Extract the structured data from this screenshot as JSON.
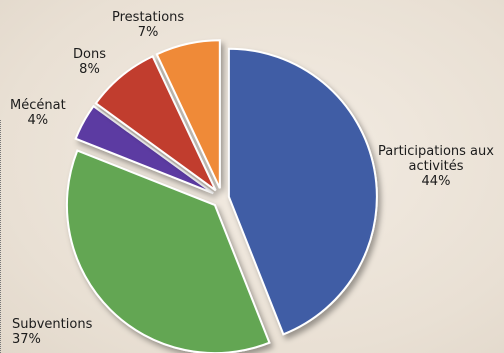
{
  "chart_data": {
    "type": "pie",
    "title": "",
    "slices": [
      {
        "label": "Participations aux\nactivités",
        "value": 44,
        "display": "44%",
        "color": "#3f5da5"
      },
      {
        "label": "Subventions",
        "value": 37,
        "display": "37%",
        "color": "#63a653"
      },
      {
        "label": "Mécénat",
        "value": 4,
        "display": "4%",
        "color": "#5b3aa2"
      },
      {
        "label": "Dons",
        "value": 8,
        "display": "8%",
        "color": "#c13c2e"
      },
      {
        "label": "Prestations",
        "value": 7,
        "display": "7%",
        "color": "#ef8a38"
      }
    ],
    "start_angle_deg": 0,
    "direction": "clockwise",
    "exploded": true
  }
}
